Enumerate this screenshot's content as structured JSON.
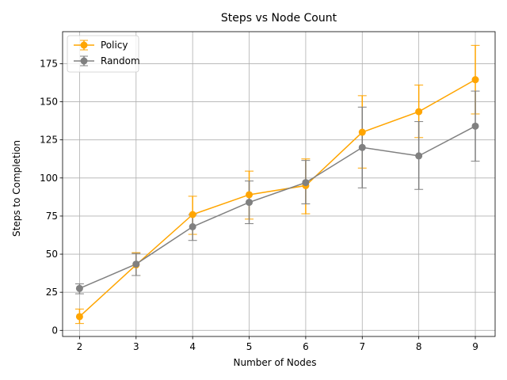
{
  "chart_data": {
    "type": "line",
    "title": "Steps vs Node Count",
    "xlabel": "Number of Nodes",
    "ylabel": "Steps to Completion",
    "x": [
      2,
      3,
      4,
      5,
      6,
      7,
      8,
      9
    ],
    "xlim": [
      1.7,
      9.35
    ],
    "ylim": [
      -4,
      196
    ],
    "xticks": [
      2,
      3,
      4,
      5,
      6,
      7,
      8,
      9
    ],
    "yticks": [
      0,
      25,
      50,
      75,
      100,
      125,
      150,
      175
    ],
    "grid": true,
    "legend": "upper-left",
    "series": [
      {
        "name": "Policy",
        "color": "#FFA500",
        "values": [
          9,
          43,
          76,
          89,
          95,
          130,
          143.5,
          164.5
        ],
        "err_low": [
          4.5,
          36,
          63,
          73,
          76.5,
          106.5,
          126.5,
          142
        ],
        "err_high": [
          14,
          51,
          88,
          104.5,
          112.5,
          154,
          161,
          187
        ]
      },
      {
        "name": "Random",
        "color": "#808080",
        "values": [
          27.5,
          43.5,
          68,
          84,
          97,
          120,
          114.5,
          134
        ],
        "err_low": [
          24,
          36,
          59,
          70,
          83,
          93.5,
          92.5,
          111
        ],
        "err_high": [
          30.5,
          50.5,
          76,
          98,
          111.5,
          146.5,
          137,
          157
        ]
      }
    ]
  }
}
